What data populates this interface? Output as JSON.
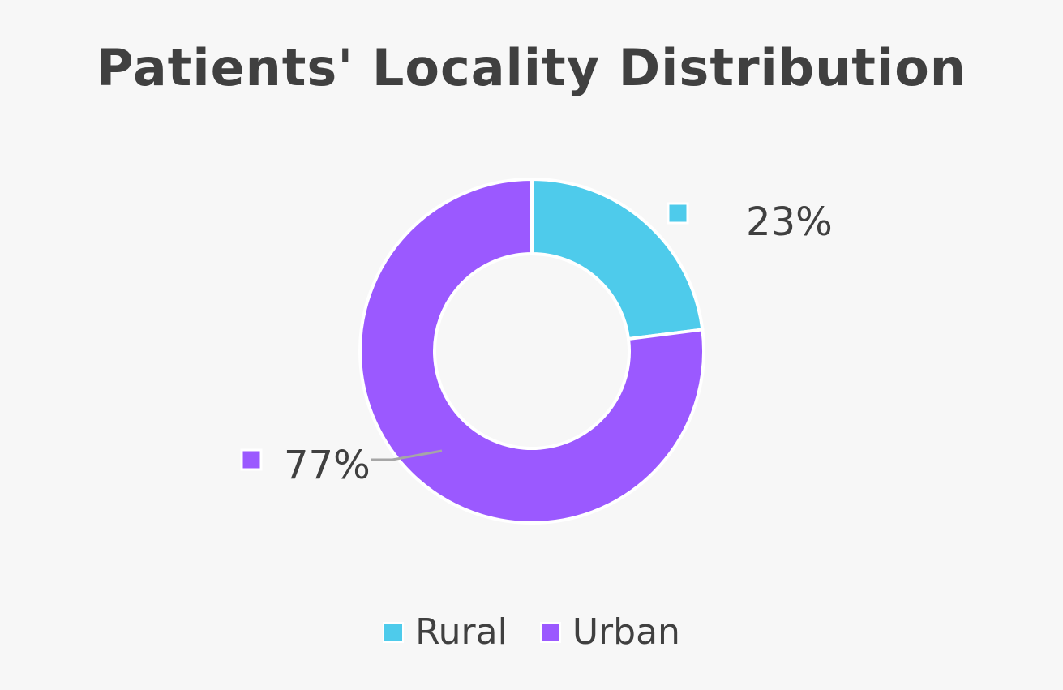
{
  "chart_data": {
    "type": "pie",
    "variant": "donut",
    "title": "Patients' Locality Distribution",
    "slices": [
      {
        "label": "Rural",
        "value": 23,
        "display": "23%",
        "color": "#4ecbeb"
      },
      {
        "label": "Urban",
        "value": 77,
        "display": "77%",
        "color": "#9b59ff"
      }
    ],
    "legend": {
      "placement": "bottom",
      "items": [
        "Rural",
        "Urban"
      ]
    },
    "start_angle": "top",
    "direction": "clockwise"
  }
}
